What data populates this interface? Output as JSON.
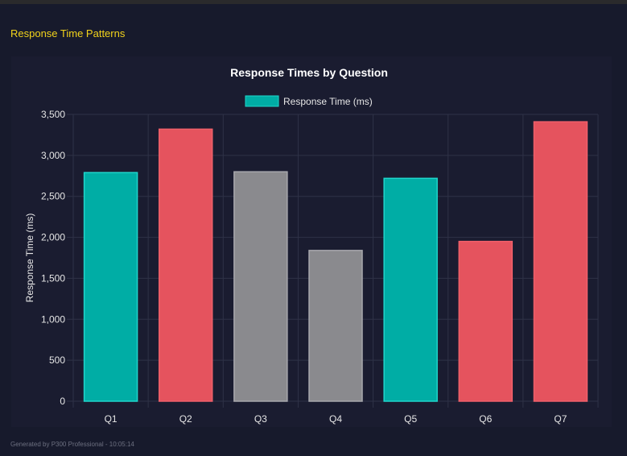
{
  "section_title": "Response Time Patterns",
  "footer": "Generated by P300 Professional - 10:05:14",
  "chart_data": {
    "type": "bar",
    "title": "Response Times by Question",
    "xlabel": "",
    "ylabel": "Response Time (ms)",
    "categories": [
      "Q1",
      "Q2",
      "Q3",
      "Q4",
      "Q5",
      "Q6",
      "Q7"
    ],
    "series": [
      {
        "name": "Response Time (ms)",
        "values": [
          2790,
          3320,
          2800,
          1840,
          2720,
          1950,
          3410
        ]
      }
    ],
    "bar_colors": [
      "#00ada5",
      "#e5535e",
      "#8a8a8e",
      "#8a8a8e",
      "#00ada5",
      "#e5535e",
      "#e5535e"
    ],
    "legend_color": "#00ada5",
    "ylim": [
      0,
      3500
    ],
    "yticks": [
      "0",
      "500",
      "1,000",
      "1,500",
      "2,000",
      "2,500",
      "3,000",
      "3,500"
    ],
    "ytick_values": [
      0,
      500,
      1000,
      1500,
      2000,
      2500,
      3000,
      3500
    ],
    "grid": true,
    "legend_position": "top"
  }
}
